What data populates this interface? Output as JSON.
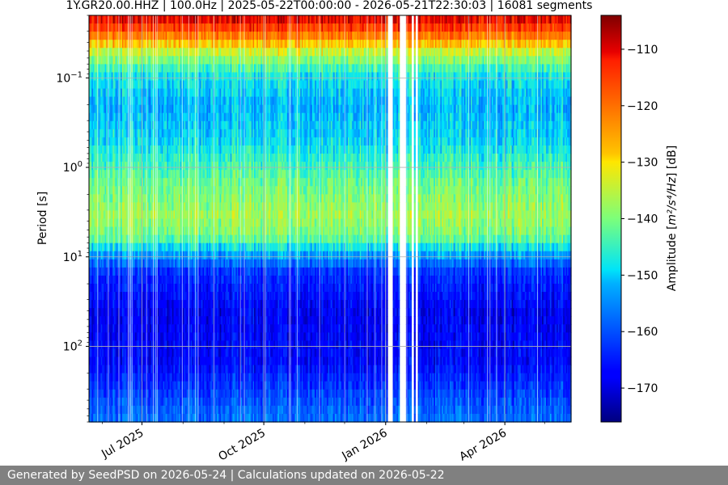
{
  "chart_data": {
    "type": "heatmap",
    "title": "1Y.GR20.00.HHZ | 100.0Hz | 2025-05-22T00:00:00 - 2026-05-21T22:30:03 | 16081 segments",
    "ylabel": "Period [s]",
    "y_scale": "log",
    "y_inverted": true,
    "ylim": [
      0.02,
      700
    ],
    "y_ticks": [
      {
        "value": 0.1,
        "base": "10",
        "exp": "−1"
      },
      {
        "value": 1,
        "base": "10",
        "exp": "0"
      },
      {
        "value": 10,
        "base": "10",
        "exp": "1"
      },
      {
        "value": 100,
        "base": "10",
        "exp": "2"
      }
    ],
    "x_start": "2025-05-22",
    "x_end": "2026-05-21",
    "x_ticks": [
      {
        "date": "2025-07-01",
        "label": "Jul 2025"
      },
      {
        "date": "2025-10-01",
        "label": "Oct 2025"
      },
      {
        "date": "2026-01-01",
        "label": "Jan 2026"
      },
      {
        "date": "2026-04-01",
        "label": "Apr 2026"
      }
    ],
    "grid": true,
    "colormap": "jet",
    "colorbar": {
      "label_prefix": "Amplitude [",
      "label_unit": "m²/s⁴/Hz",
      "label_suffix": "] [dB]",
      "range": [
        -176,
        -104
      ],
      "ticks": [
        {
          "value": -110,
          "label": "−110"
        },
        {
          "value": -120,
          "label": "−120"
        },
        {
          "value": -130,
          "label": "−130"
        },
        {
          "value": -140,
          "label": "−140"
        },
        {
          "value": -150,
          "label": "−150"
        },
        {
          "value": -160,
          "label": "−160"
        },
        {
          "value": -170,
          "label": "−170"
        }
      ]
    },
    "data_gaps": [
      [
        "2026-01-03",
        "2026-01-06"
      ],
      [
        "2026-01-12",
        "2026-01-16"
      ],
      [
        "2026-01-21",
        "2026-01-22"
      ],
      [
        "2026-01-24",
        "2026-01-25"
      ]
    ],
    "spectral_profile": [
      {
        "period": 0.02,
        "db": -108
      },
      {
        "period": 0.03,
        "db": -117
      },
      {
        "period": 0.05,
        "db": -134
      },
      {
        "period": 0.09,
        "db": -147
      },
      {
        "period": 0.2,
        "db": -152
      },
      {
        "period": 0.5,
        "db": -149
      },
      {
        "period": 1.5,
        "db": -141
      },
      {
        "period": 3.5,
        "db": -137
      },
      {
        "period": 6,
        "db": -141
      },
      {
        "period": 9,
        "db": -152
      },
      {
        "period": 15,
        "db": -163
      },
      {
        "period": 40,
        "db": -168
      },
      {
        "period": 150,
        "db": -167
      },
      {
        "period": 400,
        "db": -160
      },
      {
        "period": 700,
        "db": -157
      }
    ]
  },
  "footer": {
    "text": "Generated by SeedPSD on 2026-05-24 | Calculations updated on 2026-05-22"
  }
}
